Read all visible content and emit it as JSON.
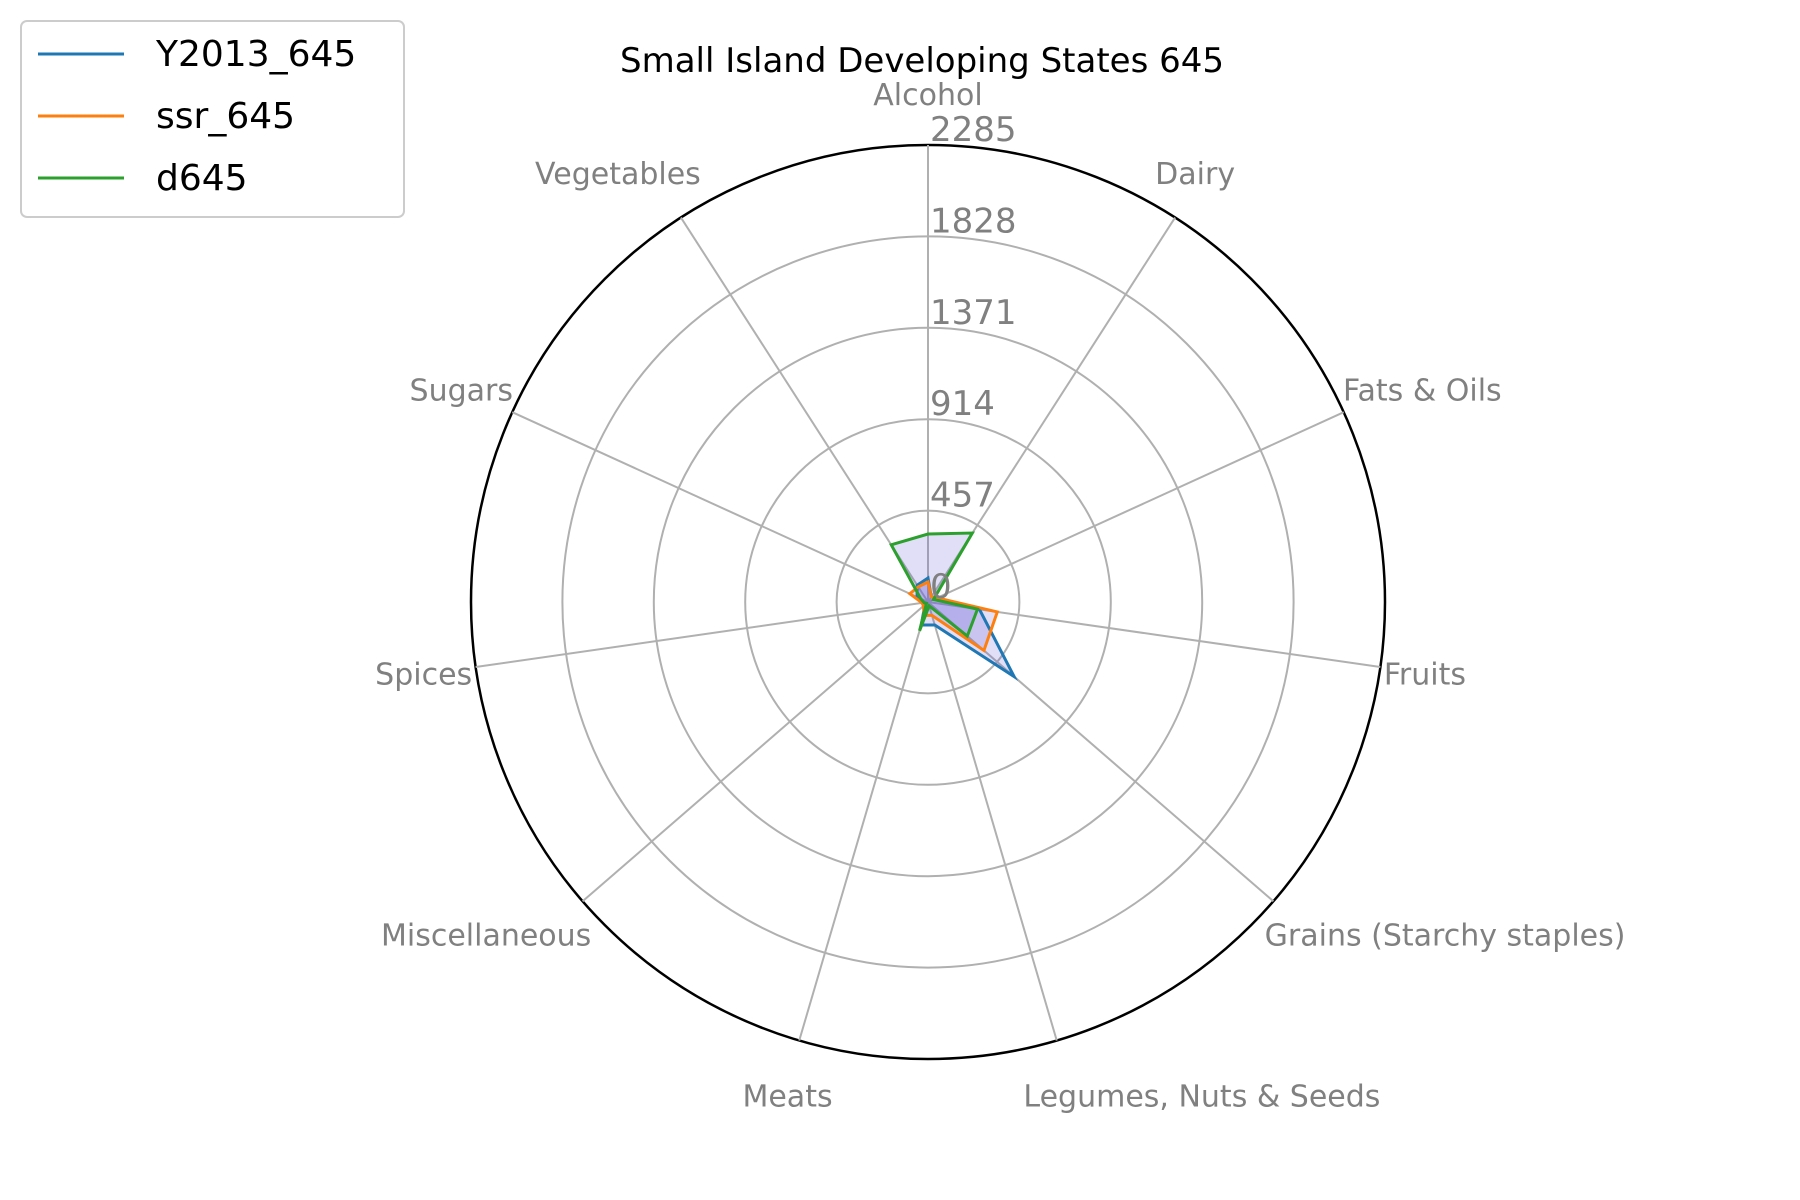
{
  "chart_data": {
    "type": "radar",
    "title": "Small Island Developing States 645",
    "categories": [
      "Alcohol",
      "Dairy",
      "Fats & Oils",
      "Fruits",
      "Grains (Starchy staples)",
      "Legumes, Nuts & Seeds",
      "Meats",
      "Miscellaneous",
      "Spices",
      "Sugars",
      "Vegetables"
    ],
    "rlim": [
      0,
      2285
    ],
    "rticks": [
      "0",
      "457",
      "914",
      "1371",
      "1828",
      "2285"
    ],
    "rtick_values": [
      0,
      457,
      914,
      1371,
      1828,
      2285
    ],
    "grid": true,
    "legend_position": "top-left",
    "series": [
      {
        "name": "Y2013_645",
        "color": "#1f77b4",
        "values": [
          120,
          30,
          50,
          260,
          570,
          120,
          120,
          20,
          20,
          60,
          100
        ]
      },
      {
        "name": "ssr_645",
        "color": "#ff7f0e",
        "values": [
          100,
          30,
          50,
          350,
          370,
          70,
          70,
          30,
          30,
          100,
          90
        ]
      },
      {
        "name": "d645",
        "color": "#2ca02c",
        "values": [
          340,
          410,
          30,
          250,
          260,
          20,
          150,
          10,
          20,
          40,
          340
        ]
      }
    ],
    "fill_color": "#6b5fd6",
    "fill_opacity": 0.2
  }
}
